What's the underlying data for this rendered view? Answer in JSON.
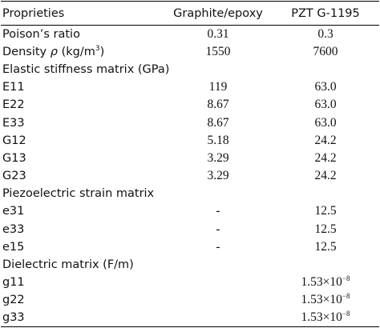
{
  "table": {
    "header": [
      "Proprieties",
      "Graphite/epoxy",
      "PZT G-1195"
    ],
    "rows": [
      [
        "Poison’s ratio",
        "0.31",
        "0.3"
      ],
      [
        {
          "pre": "Density ",
          "italic": "ρ",
          "mid": " (kg/m",
          "sup": "3",
          "post": ")"
        },
        "1550",
        "7600"
      ],
      [
        "Elastic stiffness matrix (GPa)"
      ],
      [
        "E11",
        "119",
        "63.0"
      ],
      [
        "E22",
        "8.67",
        "63.0"
      ],
      [
        "E33",
        "8.67",
        "63.0"
      ],
      [
        "G12",
        "5.18",
        "24.2"
      ],
      [
        "G13",
        "3.29",
        "24.2"
      ],
      [
        "G23",
        "3.29",
        "24.2"
      ],
      [
        "Piezoelectric strain matrix"
      ],
      [
        "e31",
        "-",
        "12.5"
      ],
      [
        "e33",
        "-",
        "12.5"
      ],
      [
        "e15",
        "-",
        "12.5"
      ],
      [
        "Dielectric matrix (F/m)"
      ],
      [
        "g11",
        "",
        {
          "pre": "1.53×10",
          "sup": "−8"
        }
      ],
      [
        "g22",
        "",
        {
          "pre": "1.53×10",
          "sup": "−8"
        }
      ],
      [
        "g33",
        "",
        {
          "pre": "1.53×10",
          "sup": "−8"
        }
      ]
    ]
  }
}
